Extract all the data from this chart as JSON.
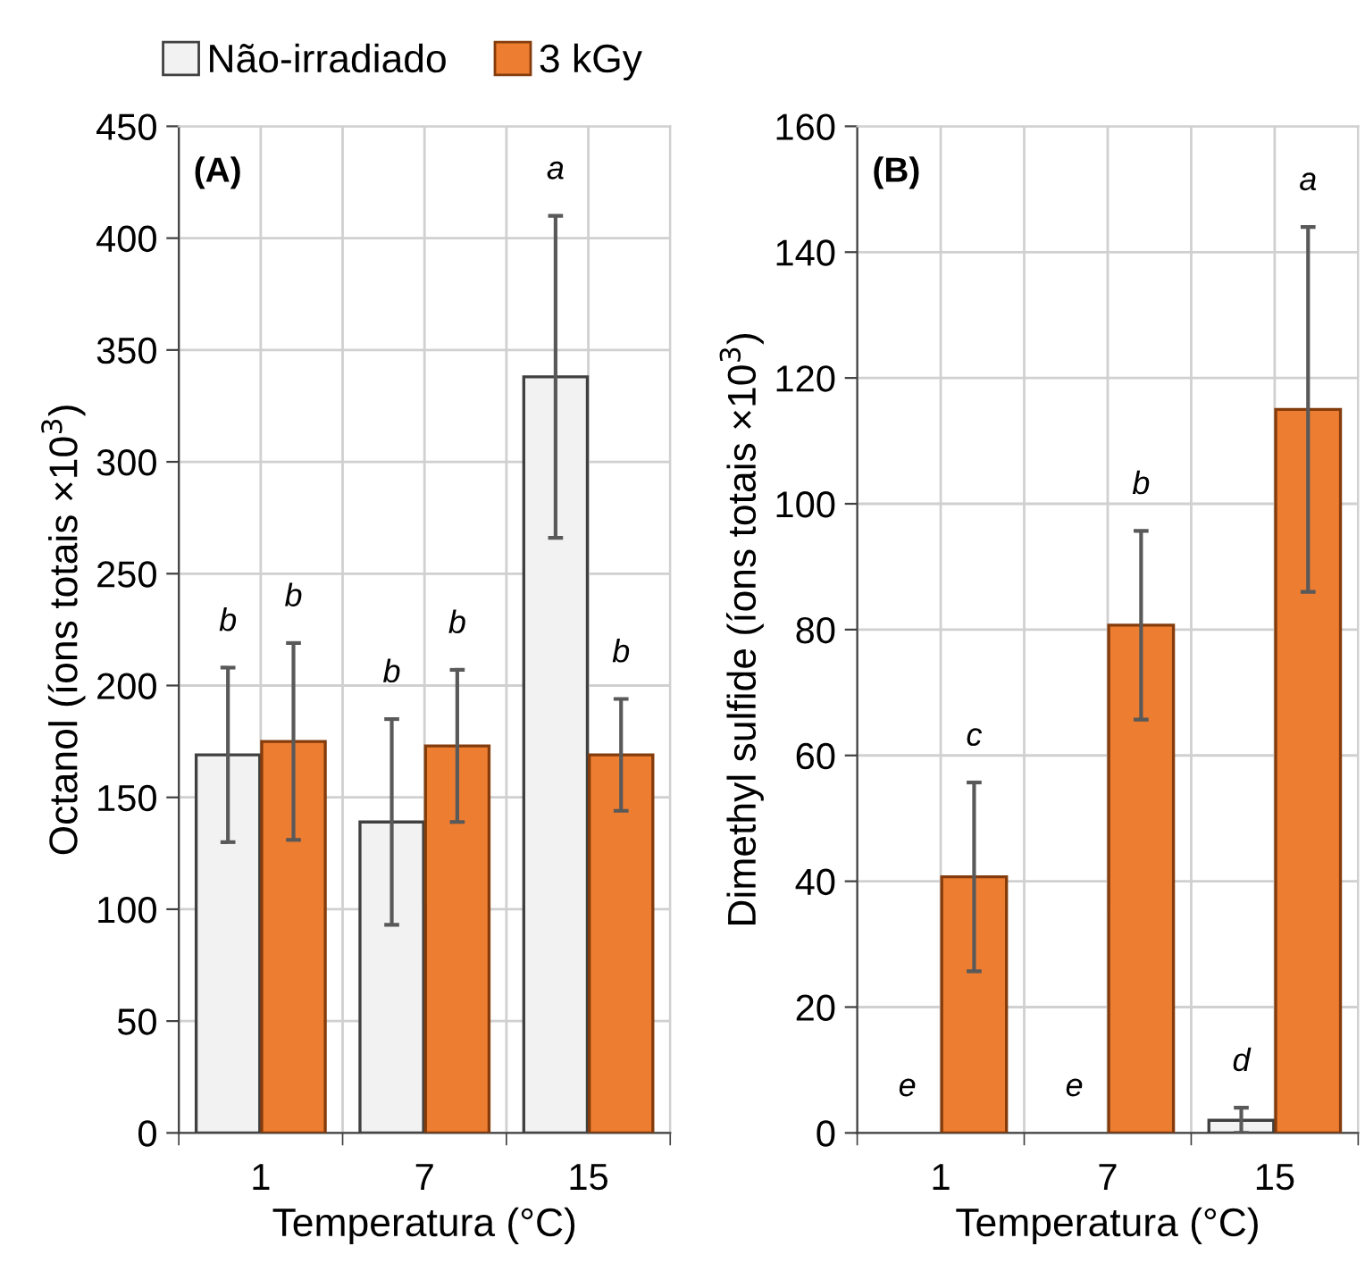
{
  "chart_data": [
    {
      "type": "bar",
      "categories": [
        "1",
        "7",
        "15"
      ],
      "xlabel": "Temperatura (°C)",
      "ylabel": "Octanol (íons totais ×10$^{3}$)",
      "ylim": [
        0,
        450
      ],
      "yticks": [
        0,
        50,
        100,
        150,
        200,
        250,
        300,
        350,
        400,
        450
      ],
      "grid": true,
      "legend": "top",
      "annotations": [
        "(A)",
        "b",
        "b",
        "b",
        "b",
        "a",
        "b"
      ],
      "series": [
        {
          "name": "Não-irradiado",
          "color": "#f2f2f2",
          "values": [
            169,
            139,
            338
          ],
          "errors": [
            39,
            46,
            72
          ]
        },
        {
          "name": "3 kGy",
          "color": "#ed7d31",
          "values": [
            175,
            173,
            169
          ],
          "errors": [
            44,
            34,
            25
          ]
        }
      ]
    },
    {
      "type": "bar",
      "categories": [
        "1",
        "7",
        "15"
      ],
      "xlabel": "Temperatura (°C)",
      "ylabel": "Dimethyl sulfide (íons totais ×10$^{3}$)",
      "ylim": [
        0,
        160
      ],
      "yticks": [
        0,
        20,
        40,
        60,
        80,
        100,
        120,
        140,
        160
      ],
      "grid": true,
      "annotations": [
        "(B)",
        "e",
        "c",
        "e",
        "b",
        "d",
        "a"
      ],
      "series": [
        {
          "color": "#f2f2f2",
          "values": [
            0,
            0,
            2
          ],
          "errors": [
            null,
            null,
            2
          ]
        },
        {
          "color": "#ed7d31",
          "values": [
            40.7,
            80.7,
            115
          ],
          "errors": [
            15,
            15,
            29
          ]
        }
      ]
    }
  ]
}
